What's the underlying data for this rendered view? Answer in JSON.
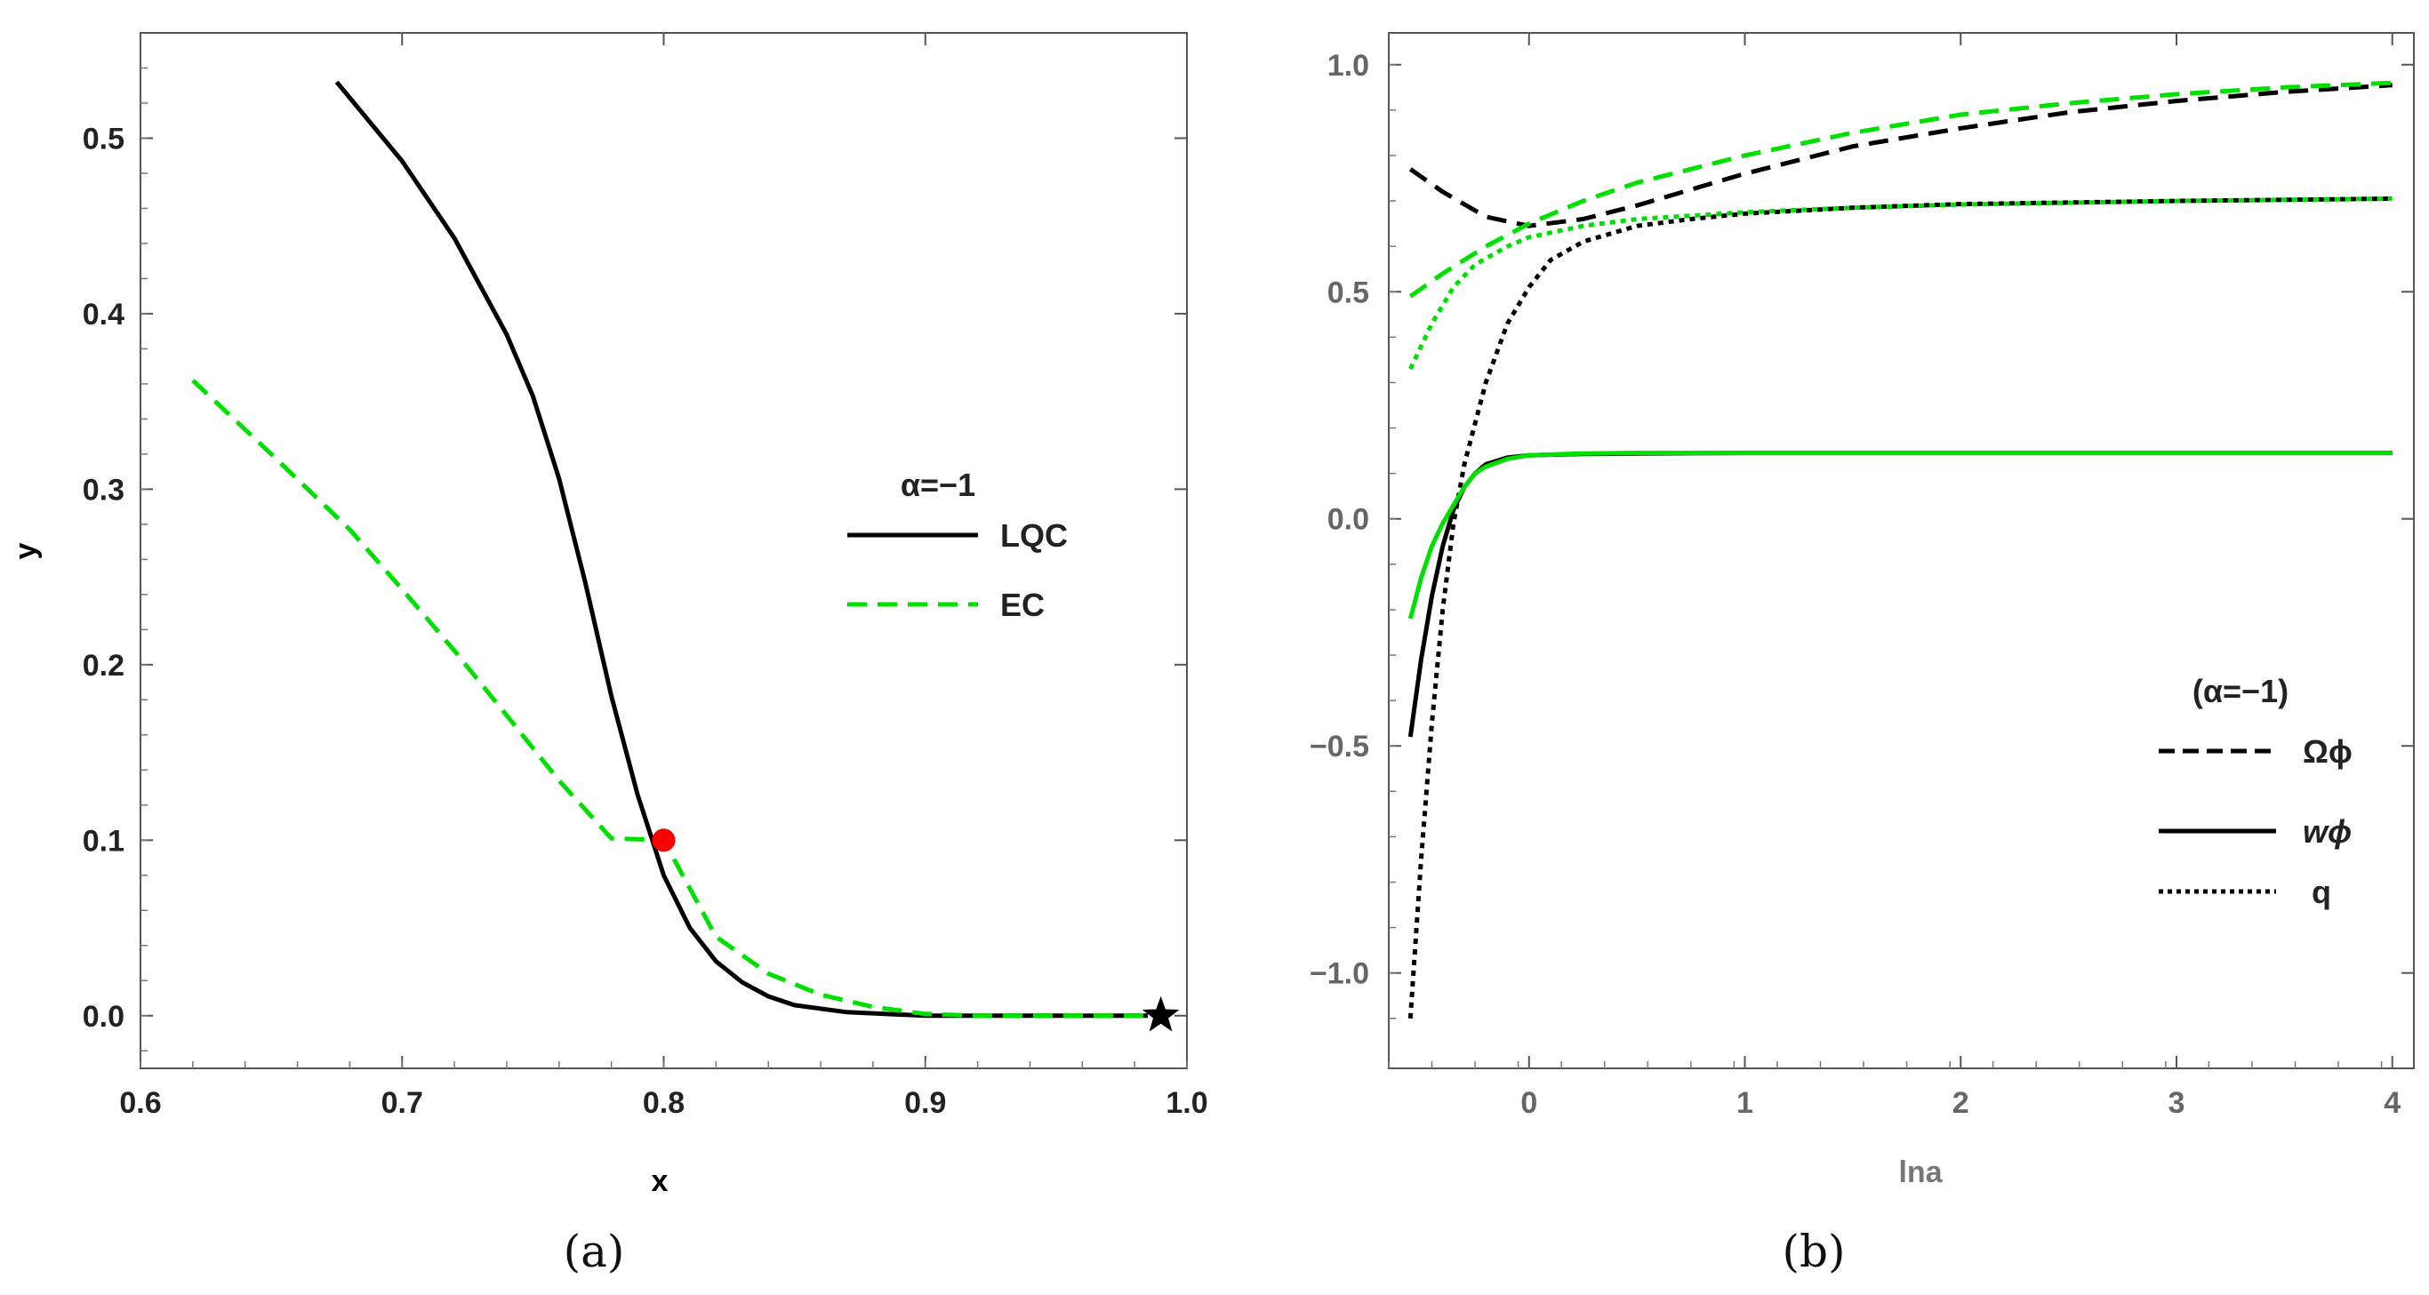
{
  "chart_data": [
    {
      "type": "line",
      "panel_label": "(a)",
      "xlabel": "x",
      "ylabel": "y",
      "xlim": [
        0.6,
        1.0
      ],
      "ylim": [
        -0.03,
        0.56
      ],
      "xticks": [
        {
          "v": 0.6,
          "label": "0.6"
        },
        {
          "v": 0.7,
          "label": "0.7"
        },
        {
          "v": 0.8,
          "label": "0.8"
        },
        {
          "v": 0.9,
          "label": "0.9"
        },
        {
          "v": 1.0,
          "label": "1.0"
        }
      ],
      "yticks": [
        {
          "v": 0.0,
          "label": "0.0"
        },
        {
          "v": 0.1,
          "label": "0.1"
        },
        {
          "v": 0.2,
          "label": "0.2"
        },
        {
          "v": 0.3,
          "label": "0.3"
        },
        {
          "v": 0.4,
          "label": "0.4"
        },
        {
          "v": 0.5,
          "label": "0.5"
        }
      ],
      "legend": {
        "title": "α=−1",
        "entries": [
          "LQC",
          "EC"
        ],
        "placement": "center-right"
      },
      "series": [
        {
          "name": "LQC",
          "color": "#000000",
          "dash": "solid",
          "points": [
            [
              0.675,
              0.532
            ],
            [
              0.7,
              0.487
            ],
            [
              0.72,
              0.443
            ],
            [
              0.74,
              0.388
            ],
            [
              0.75,
              0.353
            ],
            [
              0.76,
              0.306
            ],
            [
              0.77,
              0.247
            ],
            [
              0.78,
              0.182
            ],
            [
              0.79,
              0.126
            ],
            [
              0.8,
              0.08
            ],
            [
              0.81,
              0.05
            ],
            [
              0.82,
              0.031
            ],
            [
              0.83,
              0.019
            ],
            [
              0.84,
              0.011
            ],
            [
              0.85,
              0.006
            ],
            [
              0.87,
              0.002
            ],
            [
              0.9,
              0.0
            ],
            [
              0.95,
              0.0
            ],
            [
              0.985,
              0.0
            ]
          ]
        },
        {
          "name": "EC",
          "color": "#00e000",
          "dash": "dashed",
          "points": [
            [
              0.62,
              0.362
            ],
            [
              0.65,
              0.32
            ],
            [
              0.68,
              0.277
            ],
            [
              0.7,
              0.243
            ],
            [
              0.72,
              0.208
            ],
            [
              0.74,
              0.171
            ],
            [
              0.76,
              0.134
            ],
            [
              0.78,
              0.101
            ],
            [
              0.8,
              0.1
            ],
            [
              0.82,
              0.045
            ],
            [
              0.84,
              0.024
            ],
            [
              0.86,
              0.012
            ],
            [
              0.88,
              0.005
            ],
            [
              0.9,
              0.001
            ],
            [
              0.92,
              0.0
            ],
            [
              0.95,
              0.0
            ],
            [
              0.985,
              0.0
            ]
          ]
        }
      ],
      "markers": [
        {
          "name": "intersection-point",
          "x": 0.8,
          "y": 0.1,
          "color": "#ff0000",
          "shape": "circle"
        },
        {
          "name": "fixed-point-star",
          "x": 0.99,
          "y": 0.0,
          "color": "#000000",
          "shape": "star"
        }
      ]
    },
    {
      "type": "line",
      "panel_label": "(b)",
      "xlabel": "lna",
      "ylabel": "",
      "xlim": [
        -0.65,
        4.1
      ],
      "ylim": [
        -1.21,
        1.07
      ],
      "xticks": [
        {
          "v": 0,
          "label": "0"
        },
        {
          "v": 1,
          "label": "1"
        },
        {
          "v": 2,
          "label": "2"
        },
        {
          "v": 3,
          "label": "3"
        },
        {
          "v": 4,
          "label": "4"
        }
      ],
      "yticks": [
        {
          "v": -1.0,
          "label": "−1.0"
        },
        {
          "v": -0.5,
          "label": "−0.5"
        },
        {
          "v": 0.0,
          "label": "0.0"
        },
        {
          "v": 0.5,
          "label": "0.5"
        },
        {
          "v": 1.0,
          "label": "1.0"
        }
      ],
      "legend": {
        "title": "(α=−1)",
        "entries": [
          "Ωϕ",
          "wϕ",
          "q"
        ],
        "placement": "bottom-right"
      },
      "series": [
        {
          "name": "Ωϕ LQC",
          "color": "#000000",
          "dash": "dashed",
          "points": [
            [
              -0.55,
              0.77
            ],
            [
              -0.4,
              0.72
            ],
            [
              -0.2,
              0.665
            ],
            [
              0,
              0.645
            ],
            [
              0.25,
              0.66
            ],
            [
              0.5,
              0.69
            ],
            [
              1,
              0.76
            ],
            [
              1.5,
              0.82
            ],
            [
              2,
              0.86
            ],
            [
              2.5,
              0.895
            ],
            [
              3,
              0.92
            ],
            [
              3.5,
              0.94
            ],
            [
              4,
              0.955
            ]
          ]
        },
        {
          "name": "Ωϕ EC",
          "color": "#00e000",
          "dash": "dashed",
          "points": [
            [
              -0.55,
              0.49
            ],
            [
              -0.4,
              0.54
            ],
            [
              -0.2,
              0.6
            ],
            [
              0,
              0.65
            ],
            [
              0.25,
              0.7
            ],
            [
              0.5,
              0.74
            ],
            [
              1,
              0.8
            ],
            [
              1.5,
              0.85
            ],
            [
              2,
              0.89
            ],
            [
              2.5,
              0.915
            ],
            [
              3,
              0.935
            ],
            [
              3.5,
              0.95
            ],
            [
              4,
              0.96
            ]
          ]
        },
        {
          "name": "q LQC",
          "color": "#000000",
          "dash": "dotted",
          "points": [
            [
              -0.55,
              -1.1
            ],
            [
              -0.5,
              -0.75
            ],
            [
              -0.45,
              -0.45
            ],
            [
              -0.4,
              -0.2
            ],
            [
              -0.35,
              -0.01
            ],
            [
              -0.3,
              0.12
            ],
            [
              -0.2,
              0.3
            ],
            [
              -0.1,
              0.43
            ],
            [
              0,
              0.51
            ],
            [
              0.1,
              0.57
            ],
            [
              0.25,
              0.61
            ],
            [
              0.5,
              0.645
            ],
            [
              0.75,
              0.66
            ],
            [
              1,
              0.672
            ],
            [
              1.5,
              0.685
            ],
            [
              2,
              0.693
            ],
            [
              3,
              0.7
            ],
            [
              4,
              0.705
            ]
          ]
        },
        {
          "name": "q EC",
          "color": "#00e000",
          "dash": "dotted",
          "points": [
            [
              -0.55,
              0.33
            ],
            [
              -0.45,
              0.43
            ],
            [
              -0.35,
              0.51
            ],
            [
              -0.25,
              0.56
            ],
            [
              -0.1,
              0.6
            ],
            [
              0,
              0.62
            ],
            [
              0.25,
              0.645
            ],
            [
              0.5,
              0.66
            ],
            [
              1,
              0.675
            ],
            [
              1.5,
              0.685
            ],
            [
              2,
              0.692
            ],
            [
              3,
              0.7
            ],
            [
              4,
              0.705
            ]
          ]
        },
        {
          "name": "wϕ LQC",
          "color": "#000000",
          "dash": "solid",
          "points": [
            [
              -0.55,
              -0.48
            ],
            [
              -0.5,
              -0.31
            ],
            [
              -0.45,
              -0.17
            ],
            [
              -0.4,
              -0.06
            ],
            [
              -0.35,
              0.02
            ],
            [
              -0.3,
              0.07
            ],
            [
              -0.25,
              0.1
            ],
            [
              -0.2,
              0.12
            ],
            [
              -0.1,
              0.135
            ],
            [
              0,
              0.14
            ],
            [
              0.25,
              0.143
            ],
            [
              0.5,
              0.144
            ],
            [
              1,
              0.145
            ],
            [
              2,
              0.145
            ],
            [
              3,
              0.145
            ],
            [
              4,
              0.145
            ]
          ]
        },
        {
          "name": "wϕ EC",
          "color": "#00e000",
          "dash": "solid",
          "points": [
            [
              -0.55,
              -0.22
            ],
            [
              -0.5,
              -0.13
            ],
            [
              -0.45,
              -0.06
            ],
            [
              -0.4,
              -0.01
            ],
            [
              -0.35,
              0.03
            ],
            [
              -0.3,
              0.07
            ],
            [
              -0.25,
              0.1
            ],
            [
              -0.2,
              0.115
            ],
            [
              -0.1,
              0.132
            ],
            [
              0,
              0.14
            ],
            [
              0.25,
              0.144
            ],
            [
              0.5,
              0.145
            ],
            [
              1,
              0.145
            ],
            [
              2,
              0.145
            ],
            [
              3,
              0.145
            ],
            [
              4,
              0.145
            ]
          ]
        }
      ]
    }
  ]
}
